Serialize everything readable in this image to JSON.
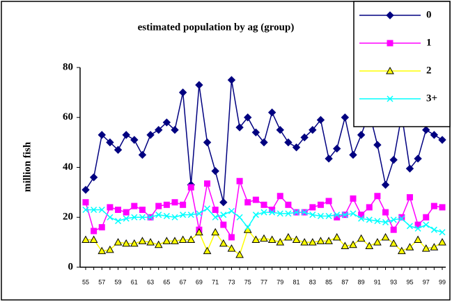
{
  "chart_data": {
    "type": "line",
    "title": "estimated population by ag (group)",
    "y_label": "million fish",
    "categories": [
      "55",
      null,
      "57",
      null,
      "59",
      null,
      "61",
      null,
      "63",
      null,
      "65",
      null,
      "67",
      null,
      "69",
      null,
      "71",
      null,
      "73",
      null,
      "75",
      null,
      "77",
      null,
      "79",
      null,
      "81",
      null,
      "83",
      null,
      "85",
      null,
      "87",
      null,
      "89",
      null,
      "91",
      null,
      "93",
      null,
      "95",
      null,
      "97",
      null,
      "99"
    ],
    "series": [
      {
        "name": "0",
        "color": "#000080",
        "marker": "diamond",
        "values": [
          31,
          36,
          53,
          50,
          47,
          53,
          51,
          45,
          53,
          55,
          58,
          55,
          70,
          33,
          73,
          50,
          38.5,
          26,
          75,
          56,
          60,
          54,
          50,
          62,
          55,
          50,
          48,
          52,
          55,
          59,
          43.5,
          47.5,
          60,
          45,
          53,
          62,
          49,
          33,
          43,
          61,
          39.5,
          43.5,
          55,
          53,
          51
        ]
      },
      {
        "name": "1",
        "color": "#ff00ff",
        "marker": "square",
        "values": [
          26,
          14.5,
          16,
          24,
          23,
          22,
          24.5,
          23,
          20,
          24.5,
          25,
          26,
          25,
          32,
          15,
          33.5,
          23,
          17,
          12,
          34.5,
          26,
          27,
          25,
          23,
          28.5,
          25,
          22,
          22,
          24,
          25,
          26.5,
          20,
          21,
          27.5,
          21,
          24,
          28.5,
          22,
          15,
          20,
          28,
          17,
          20,
          24.5,
          24
        ]
      },
      {
        "name": "2",
        "color": "#ffff00",
        "marker": "triangle",
        "values": [
          11,
          11,
          6.5,
          7,
          10,
          9.5,
          9.5,
          10.5,
          10,
          9,
          10.5,
          10.5,
          11,
          11,
          14,
          6.5,
          14,
          9.5,
          7.5,
          5,
          15,
          11,
          11.5,
          11,
          10,
          12,
          11,
          10,
          10,
          10.5,
          10.5,
          12,
          8.5,
          9,
          11.5,
          8.5,
          10,
          12,
          9.5,
          6.5,
          8,
          11,
          7.5,
          8,
          10
        ]
      },
      {
        "name": "3+",
        "color": "#00ffff",
        "marker": "x",
        "values": [
          23,
          23,
          23,
          20,
          18.5,
          19.5,
          20,
          20,
          20,
          21,
          20.5,
          20,
          21,
          21,
          21.5,
          23.5,
          20,
          21,
          22.5,
          20,
          16,
          21,
          22,
          22,
          21.5,
          21.5,
          22,
          22,
          21,
          20.5,
          20.5,
          21,
          21,
          21.5,
          19.5,
          19,
          18.5,
          18,
          19,
          19.5,
          16.5,
          15.5,
          17,
          15,
          14
        ]
      }
    ],
    "ylim": [
      0,
      80
    ],
    "yticks": [
      0,
      20,
      40,
      60,
      80
    ],
    "grid": false,
    "legend": "top-right"
  }
}
